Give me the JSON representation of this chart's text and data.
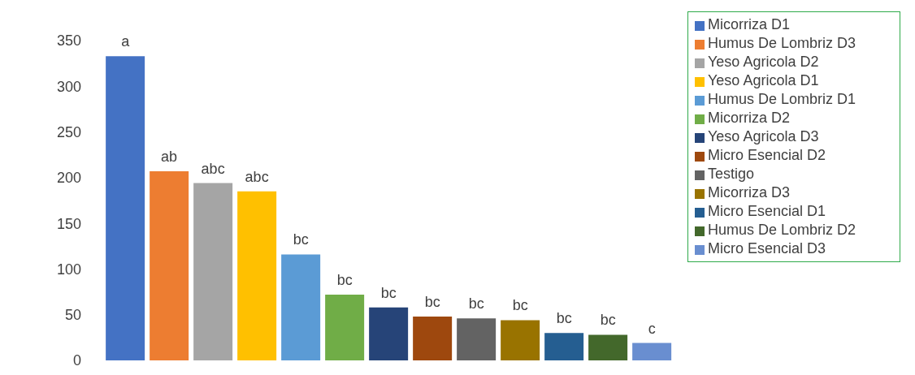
{
  "chart_data": {
    "type": "bar",
    "categories": [
      null
    ],
    "ylim": [
      0,
      350
    ],
    "yticks": [
      0,
      50,
      100,
      150,
      200,
      250,
      300,
      350
    ],
    "grid": false,
    "legend": "right",
    "series": [
      {
        "name": "Micorriza D1",
        "color": "#4472c4",
        "values": [
          333
        ],
        "value_labels": [
          "a"
        ]
      },
      {
        "name": "Humus De Lombriz D3",
        "color": "#ed7d31",
        "values": [
          207
        ],
        "value_labels": [
          "ab"
        ]
      },
      {
        "name": "Yeso Agricola D2",
        "color": "#a5a5a5",
        "values": [
          194
        ],
        "value_labels": [
          "abc"
        ]
      },
      {
        "name": "Yeso Agricola D1",
        "color": "#ffc000",
        "values": [
          185
        ],
        "value_labels": [
          "abc"
        ]
      },
      {
        "name": "Humus De Lombriz D1",
        "color": "#5b9bd5",
        "values": [
          116
        ],
        "value_labels": [
          "bc"
        ]
      },
      {
        "name": "Micorriza D2",
        "color": "#70ad47",
        "values": [
          72
        ],
        "value_labels": [
          "bc"
        ]
      },
      {
        "name": "Yeso Agricola D3",
        "color": "#264478",
        "values": [
          58
        ],
        "value_labels": [
          "bc"
        ]
      },
      {
        "name": "Micro Esencial D2",
        "color": "#9e480e",
        "values": [
          48
        ],
        "value_labels": [
          "bc"
        ]
      },
      {
        "name": "Testigo",
        "color": "#636363",
        "values": [
          46
        ],
        "value_labels": [
          "bc"
        ]
      },
      {
        "name": "Micorriza D3",
        "color": "#997300",
        "values": [
          44
        ],
        "value_labels": [
          "bc"
        ]
      },
      {
        "name": "Micro Esencial D1",
        "color": "#255e91",
        "values": [
          30
        ],
        "value_labels": [
          "bc"
        ]
      },
      {
        "name": "Humus De Lombriz D2",
        "color": "#43682b",
        "values": [
          28
        ],
        "value_labels": [
          "bc"
        ]
      },
      {
        "name": "Micro Esencial D3",
        "color": "#698ed0",
        "values": [
          19
        ],
        "value_labels": [
          "c"
        ]
      }
    ]
  }
}
